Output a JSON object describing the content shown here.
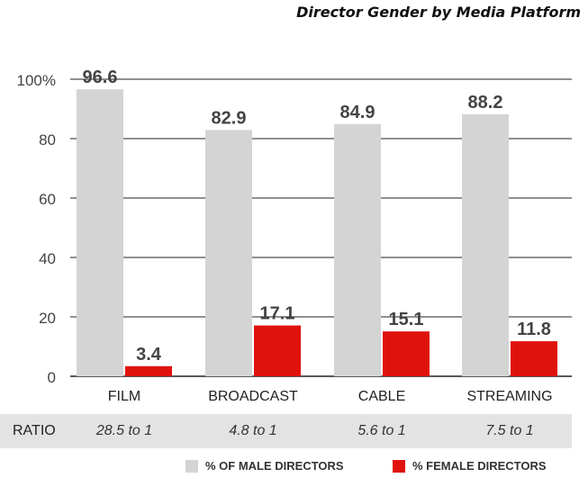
{
  "chart_data": {
    "type": "bar",
    "title": "Director Gender by Media Platform",
    "categories": [
      "FILM",
      "BROADCAST",
      "CABLE",
      "STREAMING"
    ],
    "series": [
      {
        "name": "% OF MALE DIRECTORS",
        "values": [
          96.6,
          82.9,
          84.9,
          88.2
        ],
        "color": "#d4d4d4"
      },
      {
        "name": "% FEMALE DIRECTORS",
        "values": [
          3.4,
          17.1,
          15.1,
          11.8
        ],
        "color": "#e0120e"
      }
    ],
    "value_labels": {
      "male": [
        "96.6",
        "82.9",
        "84.9",
        "88.2"
      ],
      "female": [
        "3.4",
        "17.1",
        "15.1",
        "11.8"
      ]
    },
    "y_ticks": [
      "0",
      "20",
      "40",
      "60",
      "80",
      "100%"
    ],
    "ylim": [
      0,
      100
    ],
    "grid": true,
    "legend_position": "bottom-right",
    "ratio_row": {
      "label": "RATIO",
      "values": [
        "28.5 to 1",
        "4.8 to 1",
        "5.6 to 1",
        "7.5 to 1"
      ]
    }
  }
}
